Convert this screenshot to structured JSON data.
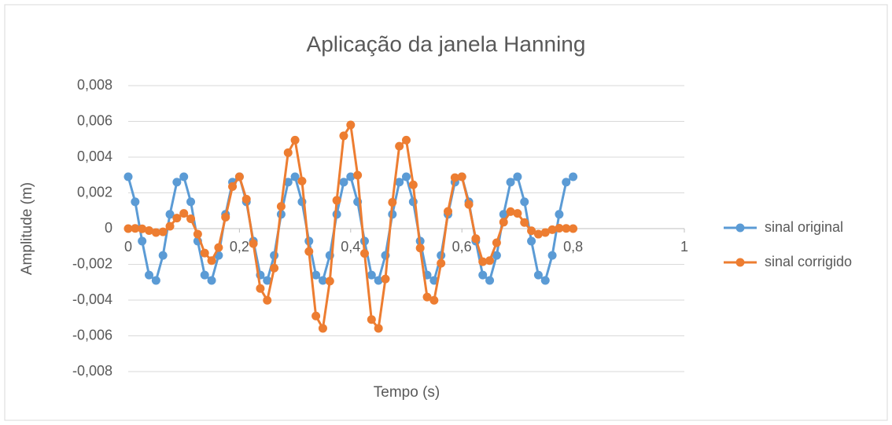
{
  "chart_data": {
    "type": "line",
    "title": "Aplicação da janela Hanning",
    "x_label": "Tempo (s)",
    "y_label": "Amplitude (m)",
    "x": [
      0,
      0.0125,
      0.025,
      0.0375,
      0.05,
      0.0625,
      0.075,
      0.0875,
      0.1,
      0.1125,
      0.125,
      0.1375,
      0.15,
      0.1625,
      0.175,
      0.1875,
      0.2,
      0.2125,
      0.225,
      0.2375,
      0.25,
      0.2625,
      0.275,
      0.2875,
      0.3,
      0.3125,
      0.325,
      0.3375,
      0.35,
      0.3625,
      0.375,
      0.3875,
      0.4,
      0.4125,
      0.425,
      0.4375,
      0.45,
      0.4625,
      0.475,
      0.4875,
      0.5,
      0.5125,
      0.525,
      0.5375,
      0.55,
      0.5625,
      0.575,
      0.5875,
      0.6,
      0.6125,
      0.625,
      0.6375,
      0.65,
      0.6625,
      0.675,
      0.6875,
      0.7,
      0.7125,
      0.725,
      0.7375,
      0.75,
      0.7625,
      0.775,
      0.7875,
      0.8
    ],
    "series": [
      {
        "name": "sinal original",
        "color": "#5b9bd5",
        "values": [
          0.0029,
          0.0015,
          -0.0007,
          -0.0026,
          -0.0029,
          -0.0015,
          0.0008,
          0.0026,
          0.0029,
          0.0015,
          -0.0007,
          -0.0026,
          -0.0029,
          -0.0015,
          0.0008,
          0.0026,
          0.0029,
          0.0015,
          -0.0007,
          -0.0026,
          -0.0029,
          -0.0015,
          0.0008,
          0.0026,
          0.0029,
          0.0015,
          -0.0007,
          -0.0026,
          -0.0029,
          -0.0015,
          0.0008,
          0.0026,
          0.0029,
          0.0015,
          -0.0007,
          -0.0026,
          -0.0029,
          -0.0015,
          0.0008,
          0.0026,
          0.0029,
          0.0015,
          -0.0007,
          -0.0026,
          -0.0029,
          -0.0015,
          0.0008,
          0.0026,
          0.0029,
          0.0015,
          -0.0007,
          -0.0026,
          -0.0029,
          -0.0015,
          0.0008,
          0.0026,
          0.0029,
          0.0015,
          -0.0007,
          -0.0026,
          -0.0029,
          -0.0015,
          0.0008,
          0.0026,
          0.0029
        ]
      },
      {
        "name": "sinal corrigido",
        "color": "#ed7d31",
        "values": [
          0,
          1e-05,
          -1e-05,
          -0.00011,
          -0.00022,
          -0.00018,
          0.00013,
          0.00059,
          0.00085,
          0.00055,
          -0.00031,
          -0.00137,
          -0.00179,
          -0.00106,
          0.00064,
          0.00235,
          0.0029,
          0.00165,
          -0.00084,
          -0.00335,
          -0.00401,
          -0.00221,
          0.00124,
          0.00425,
          0.00495,
          0.00266,
          -0.00128,
          -0.00489,
          -0.00558,
          -0.00294,
          0.00158,
          0.00519,
          0.0058,
          0.00299,
          -0.00139,
          -0.00509,
          -0.00558,
          -0.00282,
          0.00147,
          0.00461,
          0.00495,
          0.00245,
          -0.00109,
          -0.00383,
          -0.00401,
          -0.00194,
          0.00096,
          0.00285,
          0.0029,
          0.00135,
          -0.00056,
          -0.00185,
          -0.00179,
          -0.00079,
          0.00036,
          0.00095,
          0.00085,
          0.00034,
          -0.00012,
          -0.00031,
          -0.00022,
          -6e-05,
          2e-05,
          1e-05,
          0
        ]
      }
    ],
    "xlim": [
      0,
      1
    ],
    "ylim": [
      -0.008,
      0.008
    ],
    "xticks": [
      0,
      {
        "value": 0.2,
        "label": "0,2"
      },
      {
        "value": 0.4,
        "label": "0,4"
      },
      {
        "value": 0.6,
        "label": "0,6"
      },
      {
        "value": 0.8,
        "label": "0,8"
      },
      1
    ],
    "yticks": [
      {
        "value": -0.008,
        "label": "-0,008"
      },
      {
        "value": -0.006,
        "label": "-0,006"
      },
      {
        "value": -0.004,
        "label": "-0,004"
      },
      {
        "value": -0.002,
        "label": "-0,002"
      },
      0,
      {
        "value": 0.002,
        "label": "0,002"
      },
      {
        "value": 0.004,
        "label": "0,004"
      },
      {
        "value": 0.006,
        "label": "0,006"
      },
      {
        "value": 0.008,
        "label": "0,008"
      }
    ],
    "grid": true,
    "legend": "right"
  }
}
